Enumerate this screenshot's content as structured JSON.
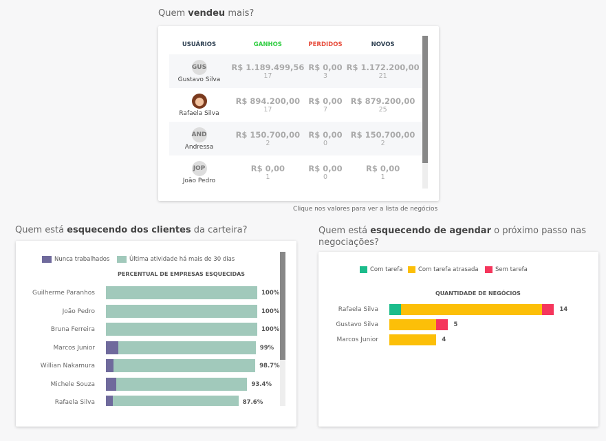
{
  "q1": {
    "pre": "Quem ",
    "bold": "vendeu",
    "post": " mais?"
  },
  "table": {
    "headers": [
      "USUÁRIOS",
      "GANHOS",
      "PERDIDOS",
      "NOVOS"
    ],
    "rows": [
      {
        "initials": "GUS",
        "name": "Gustavo Silva",
        "ganhos": "R$ 1.189.499,56",
        "ganhos_n": "17",
        "perdidos": "R$ 0,00",
        "perdidos_n": "3",
        "novos": "R$ 1.172.200,00",
        "novos_n": "21"
      },
      {
        "initials": "",
        "name": "Rafaela Silva",
        "ganhos": "R$ 894.200,00",
        "ganhos_n": "17",
        "perdidos": "R$ 0,00",
        "perdidos_n": "7",
        "novos": "R$ 879.200,00",
        "novos_n": "25"
      },
      {
        "initials": "AND",
        "name": "Andressa",
        "ganhos": "R$ 150.700,00",
        "ganhos_n": "2",
        "perdidos": "R$ 0,00",
        "perdidos_n": "0",
        "novos": "R$ 150.700,00",
        "novos_n": "2"
      },
      {
        "initials": "JOP",
        "name": "João Pedro",
        "ganhos": "R$ 0,00",
        "ganhos_n": "1",
        "perdidos": "R$ 0,00",
        "perdidos_n": "0",
        "novos": "R$ 0,00",
        "novos_n": "1"
      }
    ]
  },
  "hint": "Clique nos valores para ver a lista de negócios",
  "q2": {
    "pre": "Quem está ",
    "bold": "esquecendo dos clientes",
    "post": " da carteira?"
  },
  "q3": {
    "pre": "Quem está ",
    "bold": "esquecendo de agendar",
    "post": " o próximo passo nas negociações?"
  },
  "colors": {
    "ganhos": "#2ecc40",
    "perdidos": "#e74c3c",
    "novos": "#2c3e50",
    "never": "#6f6a9c",
    "old": "#a1c9bb",
    "com": "#1bbc8b",
    "atrasada": "#fcbf08",
    "sem": "#f5365c"
  },
  "chart_data": [
    {
      "type": "bar",
      "title": "PERCENTUAL DE EMPRESAS ESQUECIDAS",
      "legend": [
        "Nunca trabalhados",
        "Última atividade há mais de 30 dias"
      ],
      "categories": [
        "Guilherme Paranhos",
        "João Pedro",
        "Bruna Ferreira",
        "Marcos Junior",
        "Willian Nakamura",
        "Michele Souza",
        "Rafaela Silva"
      ],
      "labels": [
        "100%",
        "100%",
        "100%",
        "99%",
        "98.7%",
        "93.4%",
        "87.6%"
      ],
      "series": [
        {
          "name": "Nunca trabalhados",
          "values": [
            0,
            0,
            0,
            8,
            5,
            7,
            4.5
          ]
        },
        {
          "name": "Última atividade há mais de 30 dias",
          "values": [
            100,
            100,
            100,
            91,
            93.7,
            86.4,
            83.1
          ]
        }
      ]
    },
    {
      "type": "bar",
      "title": "QUANTIDADE DE NEGÓCIOS",
      "legend": [
        "Com tarefa",
        "Com tarefa atrasada",
        "Sem tarefa"
      ],
      "categories": [
        "Rafaela Silva",
        "Gustavo Silva",
        "Marcos Junior"
      ],
      "labels": [
        "14",
        "5",
        "4"
      ],
      "series": [
        {
          "name": "Com tarefa",
          "values": [
            1,
            0,
            0
          ]
        },
        {
          "name": "Com tarefa atrasada",
          "values": [
            12,
            4,
            4
          ]
        },
        {
          "name": "Sem tarefa",
          "values": [
            1,
            1,
            0
          ]
        }
      ]
    }
  ]
}
